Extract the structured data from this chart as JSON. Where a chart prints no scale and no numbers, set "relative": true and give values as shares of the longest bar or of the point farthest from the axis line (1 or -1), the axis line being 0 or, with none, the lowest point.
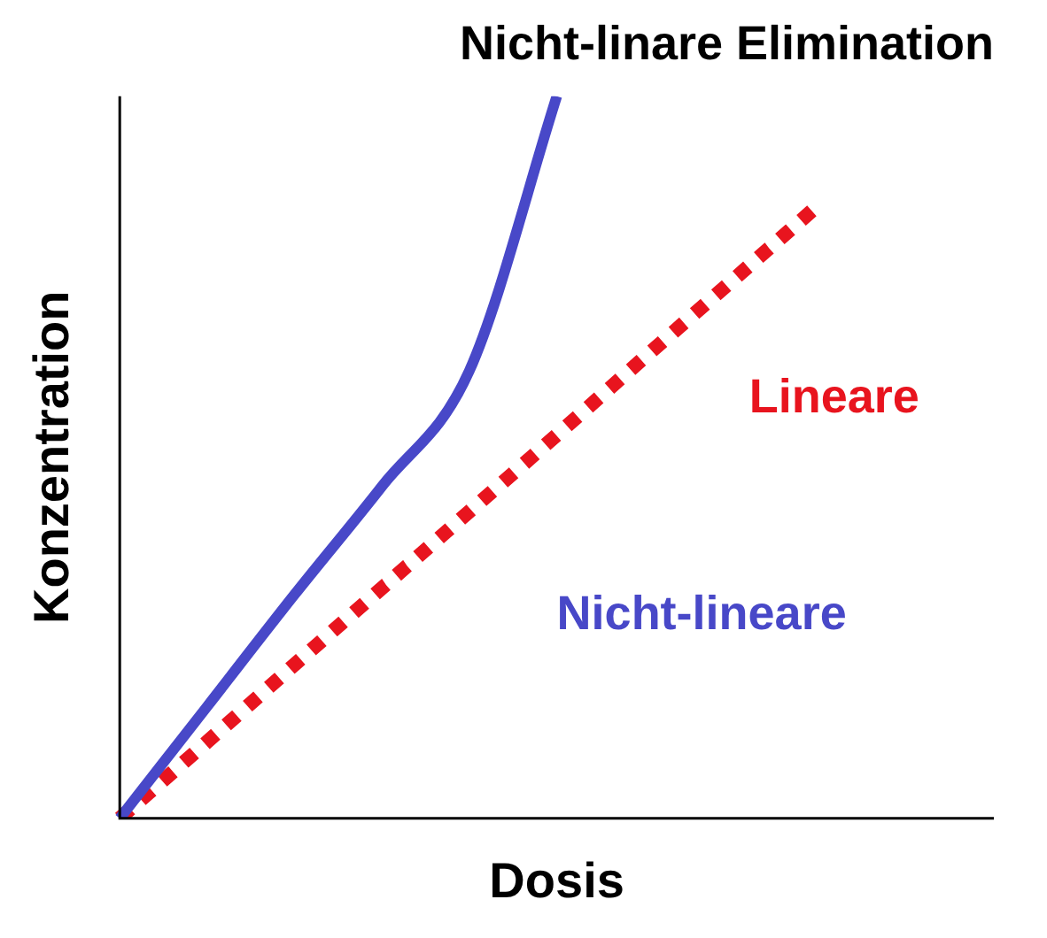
{
  "chart_data": {
    "type": "line",
    "relative": true,
    "title": "Nicht-linare Elimination",
    "xlabel": "Dosis",
    "ylabel": "Konzentration",
    "categories": [
      null,
      null,
      null,
      null,
      null,
      null,
      null,
      null,
      null,
      null,
      null
    ],
    "grid": false,
    "legend": false,
    "tick_labels": false,
    "marker": "none",
    "series": [
      {
        "name": "Nicht-lineare",
        "color": "#4848c8",
        "line_style": "solid",
        "values": [
          0,
          0.155,
          0.31,
          0.46,
          0.62,
          1.0,
          null,
          null,
          null,
          null,
          null
        ]
      },
      {
        "name": "Lineare",
        "color": "#e8141e",
        "line_style": "dotted",
        "values": [
          0,
          0.106,
          0.213,
          0.319,
          0.425,
          0.531,
          0.638,
          0.744,
          0.85,
          null,
          null
        ]
      }
    ]
  }
}
